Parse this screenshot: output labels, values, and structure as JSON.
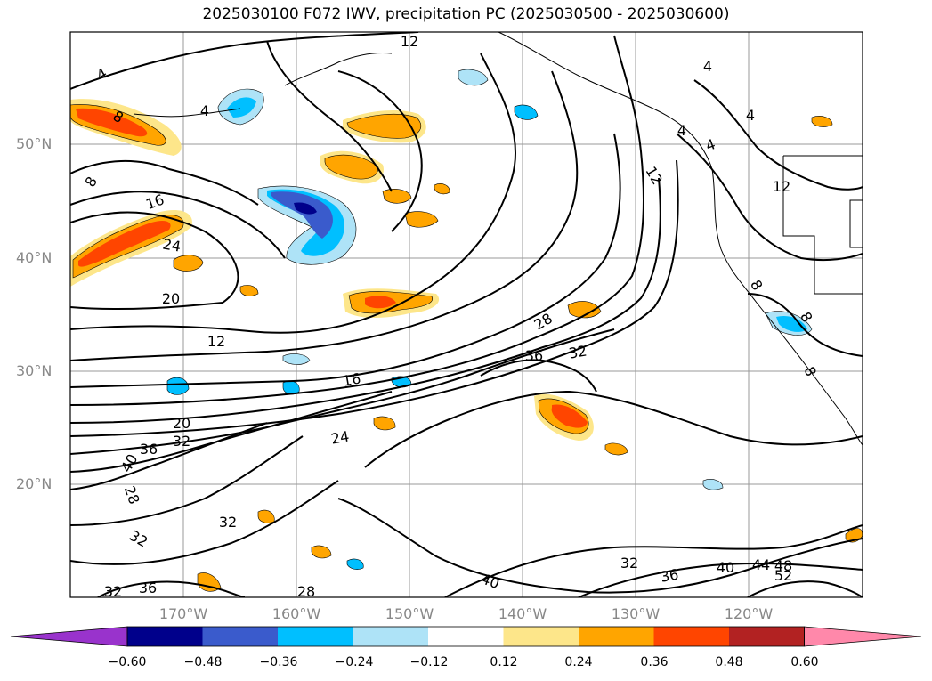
{
  "title": "2025030100 F072 IWV, precipitation PC (2025030500 - 2025030600)",
  "lat_labels": [
    "50°N",
    "40°N",
    "30°N",
    "20°N"
  ],
  "lon_labels": [
    "170°W",
    "160°W",
    "150°W",
    "140°W",
    "130°W",
    "120°W"
  ],
  "contour_labels": [
    "4",
    "8",
    "12",
    "16",
    "20",
    "24",
    "28",
    "32",
    "36",
    "40",
    "44",
    "48",
    "52"
  ],
  "colorbar": {
    "ticks": [
      "−0.60",
      "−0.48",
      "−0.36",
      "−0.24",
      "−0.12",
      "0.12",
      "0.24",
      "0.36",
      "0.48",
      "0.60"
    ],
    "colors": [
      "#9933cc",
      "#00008b",
      "#3a5bcc",
      "#00bfff",
      "#aee3f7",
      "#ffffff",
      "#fde68a",
      "#ffa500",
      "#ff4500",
      "#b22222",
      "#ff88aa"
    ]
  }
}
